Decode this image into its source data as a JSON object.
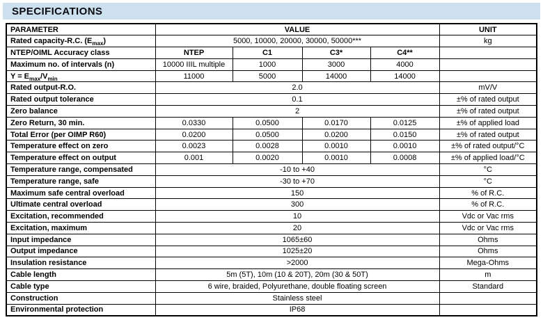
{
  "title": "SPECIFICATIONS",
  "colors": {
    "title_bar_bg": "#CDE0EE",
    "title_text": "#0b0b12",
    "table_border": "#000000",
    "table_text": "#000000",
    "page_bg": "#ffffff"
  },
  "table": {
    "headers": {
      "parameter": "PARAMETER",
      "value": "VALUE",
      "unit": "UNIT"
    },
    "rows": [
      {
        "parameter": [
          {
            "text": "Rated capacity-R.C. (E"
          },
          {
            "text": "max",
            "sub": true
          },
          {
            "text": ")"
          }
        ],
        "values": {
          "type": "span",
          "text": "5000, 10000, 20000, 30000, 50000***"
        },
        "unit": "kg"
      },
      {
        "parameter": [
          {
            "text": "NTEP/OIML Accuracy class"
          }
        ],
        "values": {
          "type": "cols",
          "bold": true,
          "cells": [
            "NTEP",
            "C1",
            "C3*",
            "C4**"
          ]
        },
        "unit": ""
      },
      {
        "parameter": [
          {
            "text": "Maximum no. of intervals (n)"
          }
        ],
        "values": {
          "type": "cols",
          "bold": false,
          "cells": [
            "10000 IIIL multiple",
            "1000",
            "3000",
            "4000"
          ]
        },
        "unit": ""
      },
      {
        "parameter": [
          {
            "text": "Y = E"
          },
          {
            "text": "max",
            "sub": true
          },
          {
            "text": "/V"
          },
          {
            "text": "min",
            "sub": true
          }
        ],
        "values": {
          "type": "cols",
          "bold": false,
          "cells": [
            "11000",
            "5000",
            "14000",
            "14000"
          ]
        },
        "unit": ""
      },
      {
        "parameter": [
          {
            "text": "Rated output-R.O."
          }
        ],
        "values": {
          "type": "span",
          "text": "2.0"
        },
        "unit": "mV/V"
      },
      {
        "parameter": [
          {
            "text": "Rated output tolerance"
          }
        ],
        "values": {
          "type": "span",
          "text": "0.1"
        },
        "unit": "±% of rated output"
      },
      {
        "parameter": [
          {
            "text": "Zero balance"
          }
        ],
        "values": {
          "type": "span",
          "text": "2"
        },
        "unit": "±% of rated output"
      },
      {
        "parameter": [
          {
            "text": "Zero Return, 30 min."
          }
        ],
        "values": {
          "type": "cols",
          "bold": false,
          "cells": [
            "0.0330",
            "0.0500",
            "0.0170",
            "0.0125"
          ]
        },
        "unit": "±% of applied load"
      },
      {
        "parameter": [
          {
            "text": "Total Error (per OIMP R60)"
          }
        ],
        "values": {
          "type": "cols",
          "bold": false,
          "cells": [
            "0.0200",
            "0.0500",
            "0.0200",
            "0.0150"
          ]
        },
        "unit": "±% of rated output"
      },
      {
        "parameter": [
          {
            "text": "Temperature effect on zero"
          }
        ],
        "values": {
          "type": "cols",
          "bold": false,
          "cells": [
            "0.0023",
            "0.0028",
            "0.0010",
            "0.0010"
          ]
        },
        "unit": "±% of rated output/°C"
      },
      {
        "parameter": [
          {
            "text": "Temperature effect on output"
          }
        ],
        "values": {
          "type": "cols",
          "bold": false,
          "cells": [
            "0.001",
            "0.0020",
            "0.0010",
            "0.0008"
          ]
        },
        "unit": "±% of applied load/°C"
      },
      {
        "parameter": [
          {
            "text": "Temperature range, compensated"
          }
        ],
        "values": {
          "type": "span",
          "text": "-10 to +40"
        },
        "unit": "°C"
      },
      {
        "parameter": [
          {
            "text": "Temperature range, safe"
          }
        ],
        "values": {
          "type": "span",
          "text": "-30 to +70"
        },
        "unit": "°C"
      },
      {
        "parameter": [
          {
            "text": "Maximum safe central overload"
          }
        ],
        "values": {
          "type": "span",
          "text": "150"
        },
        "unit": "% of R.C."
      },
      {
        "parameter": [
          {
            "text": "Ultimate central overload"
          }
        ],
        "values": {
          "type": "span",
          "text": "300"
        },
        "unit": "% of R.C."
      },
      {
        "parameter": [
          {
            "text": "Excitation, recommended"
          }
        ],
        "values": {
          "type": "span",
          "text": "10"
        },
        "unit": "Vdc or Vac rms"
      },
      {
        "parameter": [
          {
            "text": "Excitation, maximum"
          }
        ],
        "values": {
          "type": "span",
          "text": "20"
        },
        "unit": "Vdc or Vac rms"
      },
      {
        "parameter": [
          {
            "text": "Input impedance"
          }
        ],
        "values": {
          "type": "span",
          "text": "1065±60"
        },
        "unit": "Ohms"
      },
      {
        "parameter": [
          {
            "text": "Output impedance"
          }
        ],
        "values": {
          "type": "span",
          "text": "1025±20"
        },
        "unit": "Ohms"
      },
      {
        "parameter": [
          {
            "text": "Insulation resistance"
          }
        ],
        "values": {
          "type": "span",
          "text": ">2000"
        },
        "unit": "Mega-Ohms"
      },
      {
        "parameter": [
          {
            "text": "Cable length"
          }
        ],
        "values": {
          "type": "span",
          "text": "5m (5T), 10m (10 & 20T), 20m (30 & 50T)"
        },
        "unit": "m"
      },
      {
        "parameter": [
          {
            "text": "Cable type"
          }
        ],
        "values": {
          "type": "span",
          "text": "6 wire, braided, Polyurethane, double floating screen"
        },
        "unit": "Standard"
      },
      {
        "parameter": [
          {
            "text": "Construction"
          }
        ],
        "values": {
          "type": "span",
          "text": "Stainless steel"
        },
        "unit": ""
      },
      {
        "parameter": [
          {
            "text": "Environmental protection"
          }
        ],
        "values": {
          "type": "span",
          "text": "IP68"
        },
        "unit": ""
      }
    ]
  }
}
